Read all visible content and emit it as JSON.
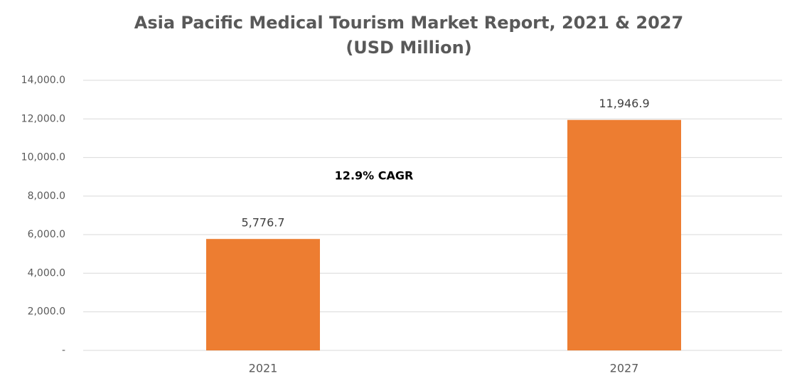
{
  "chart_data": {
    "type": "bar",
    "title": "Asia Pacific Medical Tourism Market Report, 2021 & 2027",
    "subtitle": "(USD Million)",
    "categories": [
      "2021",
      "2027"
    ],
    "values": [
      5776.7,
      11946.9
    ],
    "value_labels": [
      "5,776.7",
      "11,946.9"
    ],
    "color": "#ed7d31",
    "ylim": [
      0,
      14000
    ],
    "yticks": [
      {
        "value": 0,
        "label": "-"
      },
      {
        "value": 2000,
        "label": "2,000.0"
      },
      {
        "value": 4000,
        "label": "4,000.0"
      },
      {
        "value": 6000,
        "label": "6,000.0"
      },
      {
        "value": 8000,
        "label": "8,000.0"
      },
      {
        "value": 10000,
        "label": "10,000.0"
      },
      {
        "value": 12000,
        "label": "12,000.0"
      },
      {
        "value": 14000,
        "label": "14,000.0"
      }
    ],
    "grid": true,
    "annotation": "12.9% CAGR"
  }
}
